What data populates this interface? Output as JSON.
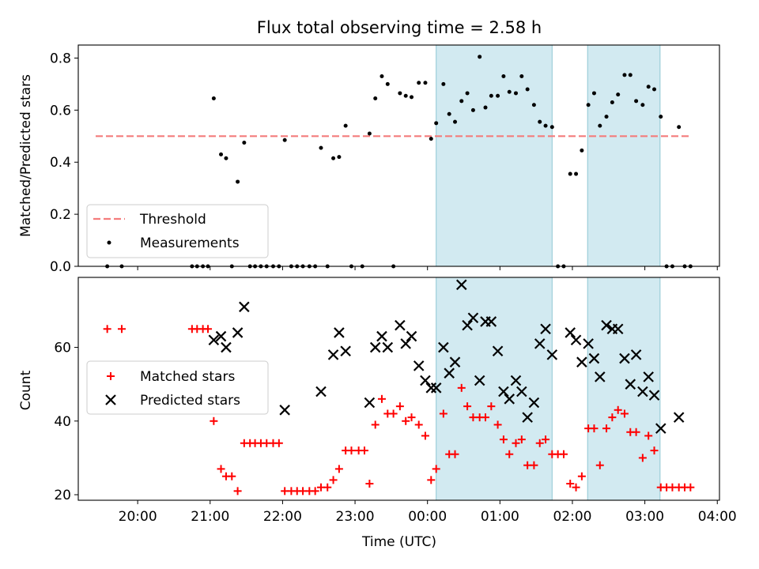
{
  "chart_data": [
    {
      "type": "scatter",
      "title": "Flux total observing time = 2.58 h",
      "xlabel": "",
      "ylabel": "Matched/Predicted stars",
      "ylim": [
        0,
        0.85
      ],
      "yticks": [
        "0.0",
        "0.2",
        "0.4",
        "0.6",
        "0.8"
      ],
      "ytick_values": [
        0,
        0.2,
        0.4,
        0.6,
        0.8
      ],
      "x_unit": "hours UTC (24 = 00:00 next day)",
      "xlim": [
        19.18,
        28.03
      ],
      "shaded_intervals": [
        [
          24.12,
          25.72
        ],
        [
          26.21,
          27.21
        ]
      ],
      "shade_color": "#add8e6",
      "legend_position": "lower left",
      "threshold": {
        "name": "Threshold",
        "value": 0.5,
        "x_range": [
          19.42,
          27.62
        ],
        "color": "#f47c7c"
      },
      "series": [
        {
          "name": "Measurements",
          "color": "#000000",
          "points": [
            [
              19.58,
              0
            ],
            [
              19.78,
              0
            ],
            [
              20.75,
              0
            ],
            [
              20.82,
              0
            ],
            [
              20.9,
              0
            ],
            [
              20.97,
              0.0
            ],
            [
              21.05,
              0.645
            ],
            [
              21.15,
              0.43
            ],
            [
              21.22,
              0.415
            ],
            [
              21.3,
              0
            ],
            [
              21.38,
              0.325
            ],
            [
              21.47,
              0.475
            ],
            [
              21.55,
              0
            ],
            [
              21.62,
              0
            ],
            [
              21.7,
              0
            ],
            [
              21.78,
              0
            ],
            [
              21.87,
              0
            ],
            [
              21.95,
              0
            ],
            [
              22.03,
              0.485
            ],
            [
              22.12,
              0
            ],
            [
              22.2,
              0
            ],
            [
              22.28,
              0
            ],
            [
              22.37,
              0
            ],
            [
              22.45,
              0
            ],
            [
              22.53,
              0.455
            ],
            [
              22.62,
              0
            ],
            [
              22.7,
              0.415
            ],
            [
              22.78,
              0.42
            ],
            [
              22.87,
              0.54
            ],
            [
              22.95,
              0
            ],
            [
              23.1,
              0
            ],
            [
              23.2,
              0.51
            ],
            [
              23.28,
              0.645
            ],
            [
              23.37,
              0.73
            ],
            [
              23.45,
              0.7
            ],
            [
              23.53,
              0
            ],
            [
              23.62,
              0.665
            ],
            [
              23.7,
              0.655
            ],
            [
              23.78,
              0.65
            ],
            [
              23.88,
              0.705
            ],
            [
              23.97,
              0.705
            ],
            [
              24.05,
              0.49
            ],
            [
              24.12,
              0.55
            ],
            [
              24.22,
              0.7
            ],
            [
              24.3,
              0.585
            ],
            [
              24.38,
              0.555
            ],
            [
              24.47,
              0.635
            ],
            [
              24.55,
              0.665
            ],
            [
              24.63,
              0.6
            ],
            [
              24.72,
              0.805
            ],
            [
              24.8,
              0.61
            ],
            [
              24.88,
              0.655
            ],
            [
              24.97,
              0.655
            ],
            [
              25.05,
              0.73
            ],
            [
              25.13,
              0.67
            ],
            [
              25.22,
              0.665
            ],
            [
              25.3,
              0.73
            ],
            [
              25.38,
              0.68
            ],
            [
              25.47,
              0.62
            ],
            [
              25.55,
              0.555
            ],
            [
              25.63,
              0.54
            ],
            [
              25.72,
              0.535
            ],
            [
              25.8,
              0
            ],
            [
              25.88,
              0
            ],
            [
              25.97,
              0.355
            ],
            [
              26.05,
              0.355
            ],
            [
              26.13,
              0.445
            ],
            [
              26.22,
              0.62
            ],
            [
              26.3,
              0.665
            ],
            [
              26.38,
              0.54
            ],
            [
              26.47,
              0.575
            ],
            [
              26.55,
              0.63
            ],
            [
              26.63,
              0.66
            ],
            [
              26.72,
              0.735
            ],
            [
              26.8,
              0.735
            ],
            [
              26.88,
              0.635
            ],
            [
              26.97,
              0.62
            ],
            [
              27.05,
              0.69
            ],
            [
              27.13,
              0.68
            ],
            [
              27.22,
              0.575
            ],
            [
              27.3,
              0
            ],
            [
              27.38,
              0
            ],
            [
              27.47,
              0.535
            ],
            [
              27.55,
              0
            ],
            [
              27.63,
              0
            ]
          ]
        }
      ]
    },
    {
      "type": "scatter",
      "title": "",
      "xlabel": "Time (UTC)",
      "ylabel": "Count",
      "ylim": [
        18.5,
        79
      ],
      "yticks": [
        "20",
        "40",
        "60"
      ],
      "ytick_values": [
        20,
        40,
        60
      ],
      "xticks": [
        "20:00",
        "21:00",
        "22:00",
        "23:00",
        "00:00",
        "01:00",
        "02:00",
        "03:00",
        "04:00"
      ],
      "xtick_values": [
        20,
        21,
        22,
        23,
        24,
        25,
        26,
        27,
        28
      ],
      "xlim": [
        19.18,
        28.03
      ],
      "shaded_intervals": [
        [
          24.12,
          25.72
        ],
        [
          26.21,
          27.21
        ]
      ],
      "shade_color": "#add8e6",
      "legend_position": "center left",
      "series": [
        {
          "name": "Matched stars",
          "marker": "plus",
          "color": "#ff0000",
          "points": [
            [
              19.58,
              65
            ],
            [
              19.78,
              65
            ],
            [
              20.75,
              65
            ],
            [
              20.82,
              65
            ],
            [
              20.9,
              65
            ],
            [
              20.97,
              65
            ],
            [
              21.05,
              40
            ],
            [
              21.15,
              27
            ],
            [
              21.22,
              25
            ],
            [
              21.3,
              25
            ],
            [
              21.38,
              21
            ],
            [
              21.47,
              34
            ],
            [
              21.55,
              34
            ],
            [
              21.62,
              34
            ],
            [
              21.7,
              34
            ],
            [
              21.78,
              34
            ],
            [
              21.87,
              34
            ],
            [
              21.95,
              34
            ],
            [
              22.03,
              21
            ],
            [
              22.12,
              21
            ],
            [
              22.2,
              21
            ],
            [
              22.28,
              21
            ],
            [
              22.37,
              21
            ],
            [
              22.45,
              21
            ],
            [
              22.53,
              22
            ],
            [
              22.62,
              22
            ],
            [
              22.7,
              24
            ],
            [
              22.78,
              27
            ],
            [
              22.87,
              32
            ],
            [
              22.95,
              32
            ],
            [
              23.05,
              32
            ],
            [
              23.13,
              32
            ],
            [
              23.2,
              23
            ],
            [
              23.28,
              39
            ],
            [
              23.37,
              46
            ],
            [
              23.45,
              42
            ],
            [
              23.53,
              42
            ],
            [
              23.62,
              44
            ],
            [
              23.7,
              40
            ],
            [
              23.78,
              41
            ],
            [
              23.88,
              39
            ],
            [
              23.97,
              36
            ],
            [
              24.05,
              24
            ],
            [
              24.12,
              27
            ],
            [
              24.22,
              42
            ],
            [
              24.3,
              31
            ],
            [
              24.38,
              31
            ],
            [
              24.47,
              49
            ],
            [
              24.55,
              44
            ],
            [
              24.63,
              41
            ],
            [
              24.72,
              41
            ],
            [
              24.8,
              41
            ],
            [
              24.88,
              44
            ],
            [
              24.97,
              39
            ],
            [
              25.05,
              35
            ],
            [
              25.13,
              31
            ],
            [
              25.22,
              34
            ],
            [
              25.3,
              35
            ],
            [
              25.38,
              28
            ],
            [
              25.47,
              28
            ],
            [
              25.55,
              34
            ],
            [
              25.63,
              35
            ],
            [
              25.72,
              31
            ],
            [
              25.8,
              31
            ],
            [
              25.88,
              31
            ],
            [
              25.97,
              23
            ],
            [
              26.05,
              22
            ],
            [
              26.13,
              25
            ],
            [
              26.22,
              38
            ],
            [
              26.3,
              38
            ],
            [
              26.38,
              28
            ],
            [
              26.47,
              38
            ],
            [
              26.55,
              41
            ],
            [
              26.63,
              43
            ],
            [
              26.72,
              42
            ],
            [
              26.8,
              37
            ],
            [
              26.88,
              37
            ],
            [
              26.97,
              30
            ],
            [
              27.05,
              36
            ],
            [
              27.13,
              32
            ],
            [
              27.22,
              22
            ],
            [
              27.3,
              22
            ],
            [
              27.38,
              22
            ],
            [
              27.47,
              22
            ],
            [
              27.55,
              22
            ],
            [
              27.63,
              22
            ]
          ]
        },
        {
          "name": "Predicted stars",
          "marker": "x",
          "color": "#000000",
          "points": [
            [
              21.05,
              62
            ],
            [
              21.15,
              63
            ],
            [
              21.22,
              60
            ],
            [
              21.38,
              64
            ],
            [
              21.47,
              71
            ],
            [
              22.03,
              43
            ],
            [
              22.53,
              48
            ],
            [
              22.7,
              58
            ],
            [
              22.78,
              64
            ],
            [
              22.87,
              59
            ],
            [
              23.2,
              45
            ],
            [
              23.28,
              60
            ],
            [
              23.37,
              63
            ],
            [
              23.45,
              60
            ],
            [
              23.62,
              66
            ],
            [
              23.7,
              61
            ],
            [
              23.78,
              63
            ],
            [
              23.88,
              55
            ],
            [
              23.97,
              51
            ],
            [
              24.05,
              49
            ],
            [
              24.12,
              49
            ],
            [
              24.22,
              60
            ],
            [
              24.3,
              53
            ],
            [
              24.38,
              56
            ],
            [
              24.47,
              77
            ],
            [
              24.55,
              66
            ],
            [
              24.63,
              68
            ],
            [
              24.72,
              51
            ],
            [
              24.8,
              67
            ],
            [
              24.88,
              67
            ],
            [
              24.97,
              59
            ],
            [
              25.05,
              48
            ],
            [
              25.13,
              46
            ],
            [
              25.22,
              51
            ],
            [
              25.3,
              48
            ],
            [
              25.38,
              41
            ],
            [
              25.47,
              45
            ],
            [
              25.55,
              61
            ],
            [
              25.63,
              65
            ],
            [
              25.72,
              58
            ],
            [
              25.97,
              64
            ],
            [
              26.05,
              62
            ],
            [
              26.13,
              56
            ],
            [
              26.22,
              61
            ],
            [
              26.3,
              57
            ],
            [
              26.38,
              52
            ],
            [
              26.47,
              66
            ],
            [
              26.55,
              65
            ],
            [
              26.63,
              65
            ],
            [
              26.72,
              57
            ],
            [
              26.8,
              50
            ],
            [
              26.88,
              58
            ],
            [
              26.97,
              48
            ],
            [
              27.05,
              52
            ],
            [
              27.13,
              47
            ],
            [
              27.22,
              38
            ],
            [
              27.47,
              41
            ]
          ]
        }
      ]
    }
  ]
}
